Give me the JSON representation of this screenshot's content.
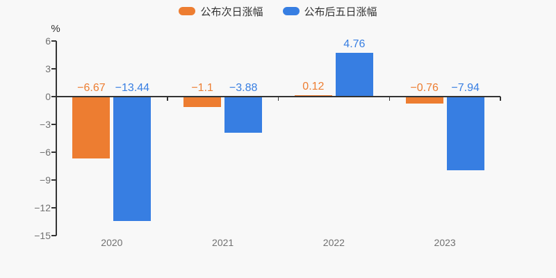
{
  "chart_data": {
    "type": "bar",
    "title": "",
    "categories": [
      "2020",
      "2021",
      "2022",
      "2023"
    ],
    "series": [
      {
        "name": "公布次日涨幅",
        "color": "#ed7d31",
        "values": [
          -6.67,
          -1.1,
          0.12,
          -0.76
        ],
        "display_values": [
          "−6.67",
          "−1.1",
          "0.12",
          "−0.76"
        ]
      },
      {
        "name": "公布后五日涨幅",
        "color": "#377ee2",
        "values": [
          -13.44,
          -3.88,
          4.76,
          -7.94
        ],
        "display_values": [
          "−13.44",
          "−3.88",
          "4.76",
          "−7.94"
        ]
      }
    ],
    "ylabel": "%",
    "yticks": [
      6,
      3,
      0,
      -3,
      -6,
      -9,
      -12,
      -15
    ],
    "ytick_display": [
      "6",
      "3",
      "0",
      "−3",
      "−6",
      "−9",
      "−12",
      "−15"
    ],
    "ylim": [
      -15,
      6
    ],
    "legend_position": "top",
    "grid": false,
    "value_labels": true
  },
  "colors": {
    "background": "#f8f8f8",
    "axis_line": "#333333",
    "tick_label_text": "#707070",
    "legend_text": "#333333"
  }
}
